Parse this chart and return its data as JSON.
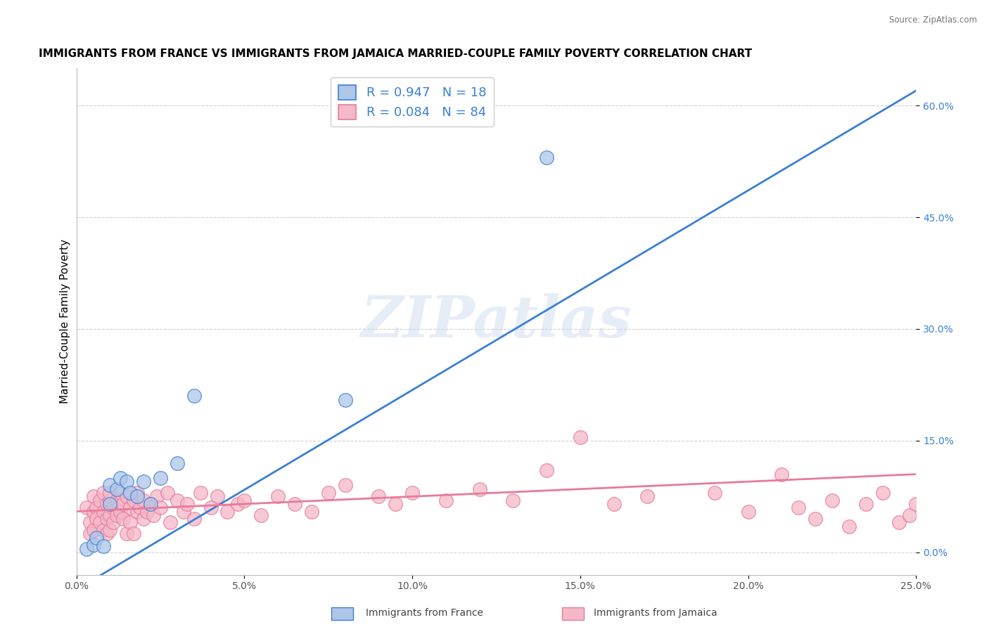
{
  "title": "IMMIGRANTS FROM FRANCE VS IMMIGRANTS FROM JAMAICA MARRIED-COUPLE FAMILY POVERTY CORRELATION CHART",
  "source": "Source: ZipAtlas.com",
  "ylabel": "Married-Couple Family Poverty",
  "xlim": [
    0.0,
    0.25
  ],
  "ylim": [
    -0.03,
    0.65
  ],
  "xtick_labels": [
    "0.0%",
    "5.0%",
    "10.0%",
    "15.0%",
    "20.0%",
    "25.0%"
  ],
  "xtick_values": [
    0.0,
    0.05,
    0.1,
    0.15,
    0.2,
    0.25
  ],
  "ytick_labels_right": [
    "60.0%",
    "45.0%",
    "30.0%",
    "15.0%",
    "0.0%"
  ],
  "ytick_values_right": [
    0.6,
    0.45,
    0.3,
    0.15,
    0.0
  ],
  "france_R": "0.947",
  "france_N": "18",
  "jamaica_R": "0.084",
  "jamaica_N": "84",
  "france_color": "#aec6e8",
  "france_line_color": "#3a7fd5",
  "jamaica_color": "#f4b8c8",
  "jamaica_line_color": "#e87a9a",
  "legend_france_label": "R = 0.947   N = 18",
  "legend_jamaica_label": "R = 0.084   N = 84",
  "watermark": "ZIPatlas",
  "france_scatter_x": [
    0.003,
    0.005,
    0.006,
    0.008,
    0.01,
    0.01,
    0.012,
    0.013,
    0.015,
    0.016,
    0.018,
    0.02,
    0.022,
    0.025,
    0.03,
    0.035,
    0.08,
    0.14
  ],
  "france_scatter_y": [
    0.005,
    0.01,
    0.02,
    0.008,
    0.09,
    0.065,
    0.085,
    0.1,
    0.095,
    0.08,
    0.075,
    0.095,
    0.065,
    0.1,
    0.12,
    0.21,
    0.205,
    0.53
  ],
  "jamaica_scatter_x": [
    0.003,
    0.004,
    0.004,
    0.005,
    0.005,
    0.005,
    0.006,
    0.006,
    0.007,
    0.007,
    0.008,
    0.008,
    0.008,
    0.009,
    0.009,
    0.009,
    0.01,
    0.01,
    0.01,
    0.01,
    0.011,
    0.011,
    0.012,
    0.012,
    0.013,
    0.013,
    0.014,
    0.014,
    0.015,
    0.015,
    0.016,
    0.016,
    0.017,
    0.017,
    0.018,
    0.018,
    0.019,
    0.02,
    0.02,
    0.021,
    0.022,
    0.023,
    0.024,
    0.025,
    0.027,
    0.028,
    0.03,
    0.032,
    0.033,
    0.035,
    0.037,
    0.04,
    0.042,
    0.045,
    0.048,
    0.05,
    0.055,
    0.06,
    0.065,
    0.07,
    0.075,
    0.08,
    0.09,
    0.095,
    0.1,
    0.11,
    0.12,
    0.13,
    0.14,
    0.15,
    0.16,
    0.17,
    0.19,
    0.2,
    0.21,
    0.215,
    0.22,
    0.225,
    0.23,
    0.235,
    0.24,
    0.245,
    0.248,
    0.25
  ],
  "jamaica_scatter_y": [
    0.06,
    0.04,
    0.025,
    0.075,
    0.055,
    0.03,
    0.06,
    0.045,
    0.07,
    0.04,
    0.08,
    0.055,
    0.03,
    0.065,
    0.045,
    0.025,
    0.07,
    0.05,
    0.03,
    0.08,
    0.06,
    0.04,
    0.07,
    0.05,
    0.08,
    0.055,
    0.065,
    0.045,
    0.075,
    0.025,
    0.06,
    0.04,
    0.07,
    0.025,
    0.08,
    0.055,
    0.06,
    0.07,
    0.045,
    0.055,
    0.065,
    0.05,
    0.075,
    0.06,
    0.08,
    0.04,
    0.07,
    0.055,
    0.065,
    0.045,
    0.08,
    0.06,
    0.075,
    0.055,
    0.065,
    0.07,
    0.05,
    0.075,
    0.065,
    0.055,
    0.08,
    0.09,
    0.075,
    0.065,
    0.08,
    0.07,
    0.085,
    0.07,
    0.11,
    0.155,
    0.065,
    0.075,
    0.08,
    0.055,
    0.105,
    0.06,
    0.045,
    0.07,
    0.035,
    0.065,
    0.08,
    0.04,
    0.05,
    0.065
  ],
  "background_color": "#ffffff",
  "grid_color": "#cccccc",
  "legend_fontsize": 13,
  "title_fontsize": 11,
  "axis_label_fontsize": 11,
  "tick_fontsize": 10
}
